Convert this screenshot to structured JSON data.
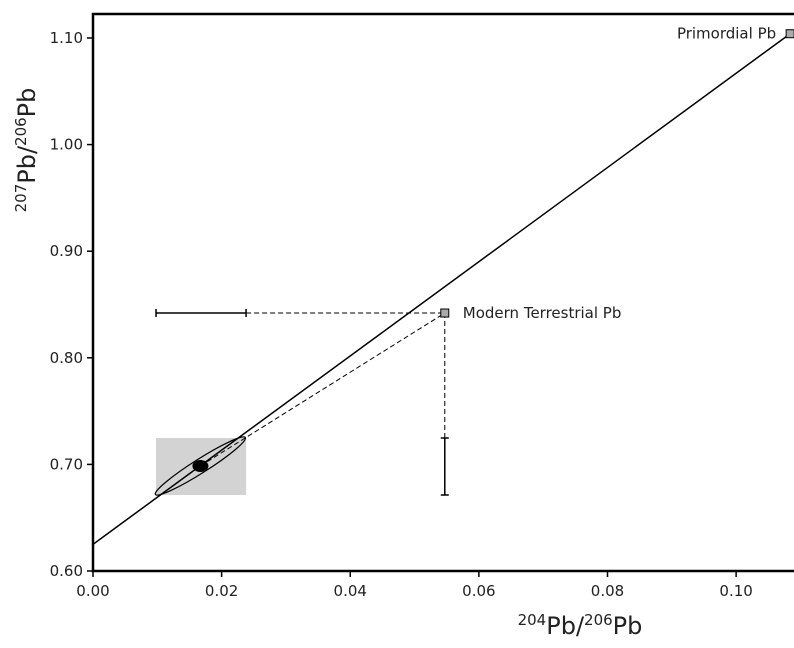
{
  "chart_data": {
    "type": "scatter",
    "x_label": [
      "204",
      "Pb/",
      "206",
      "Pb"
    ],
    "y_label": [
      "207",
      "Pb/",
      "206",
      "Pb"
    ],
    "xlim": [
      0,
      0.109
    ],
    "ylim": [
      0.6,
      1.1225
    ],
    "xticks": [
      {
        "value": 0,
        "label": "0.00"
      },
      {
        "value": 0.02,
        "label": "0.02"
      },
      {
        "value": 0.04,
        "label": "0.04"
      },
      {
        "value": 0.06,
        "label": "0.06"
      },
      {
        "value": 0.08,
        "label": "0.08"
      },
      {
        "value": 0.1,
        "label": "0.10"
      }
    ],
    "yticks": [
      {
        "value": 0.6,
        "label": "0.60"
      },
      {
        "value": 0.7,
        "label": "0.70"
      },
      {
        "value": 0.8,
        "label": "0.80"
      },
      {
        "value": 0.9,
        "label": "0.90"
      },
      {
        "value": 1.0,
        "label": "1.00"
      },
      {
        "value": 1.1,
        "label": "1.10"
      }
    ],
    "points": [
      {
        "label": "Primordial Pb",
        "x": 0.1084,
        "y": 1.104
      },
      {
        "label": "Modern Terrestrial Pb",
        "x": 0.0547,
        "y": 0.842
      }
    ],
    "isochron": {
      "x": [
        0,
        0.1084
      ],
      "y": [
        0.625,
        1.104
      ]
    },
    "sample": {
      "x": 0.0167,
      "y": 0.6985,
      "x_range": [
        0.0098,
        0.0238
      ],
      "y_range": [
        0.6713,
        0.7248
      ]
    }
  }
}
